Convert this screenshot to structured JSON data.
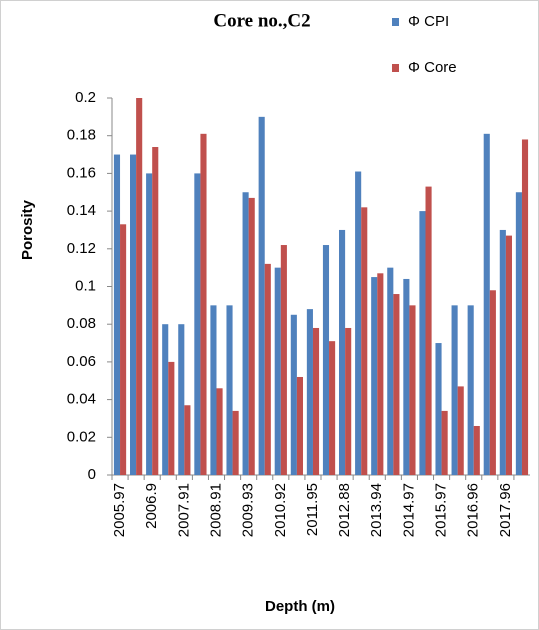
{
  "chart_data": {
    "type": "bar",
    "title": "Core no.,C2",
    "x_label": "Depth (m)",
    "y_label": "Porosity",
    "categories": [
      "2005.97",
      null,
      "2006.9",
      null,
      "2007.91",
      null,
      "2008.91",
      null,
      "2009.93",
      null,
      "2010.92",
      null,
      "2011.95",
      null,
      "2012.88",
      null,
      "2013.94",
      null,
      "2014.97",
      null,
      "2015.97",
      null,
      "2016.96",
      null,
      "2017.96",
      null
    ],
    "series": [
      {
        "name": "Φ CPI",
        "color": "#4f81bd",
        "values": [
          0.17,
          0.17,
          0.16,
          0.08,
          0.08,
          0.16,
          0.09,
          0.09,
          0.15,
          0.19,
          0.11,
          0.085,
          0.088,
          0.122,
          0.13,
          0.161,
          0.105,
          0.11,
          0.104,
          0.14,
          0.07,
          0.09,
          0.09,
          0.181,
          0.13,
          0.15
        ]
      },
      {
        "name": "Φ Core",
        "color": "#c0504d",
        "values": [
          0.133,
          0.2,
          0.174,
          0.06,
          0.037,
          0.181,
          0.046,
          0.034,
          0.147,
          0.112,
          0.122,
          0.052,
          0.078,
          0.071,
          0.078,
          0.142,
          0.107,
          0.096,
          0.09,
          0.153,
          0.034,
          0.047,
          0.026,
          0.098,
          0.127,
          0.178
        ]
      }
    ],
    "ylim": [
      0,
      0.2
    ],
    "yticks": [
      0,
      0.02,
      0.04,
      0.06,
      0.08,
      0.1,
      0.12,
      0.14,
      0.16,
      0.18,
      0.2
    ],
    "grid": false,
    "legend": "top-right"
  }
}
